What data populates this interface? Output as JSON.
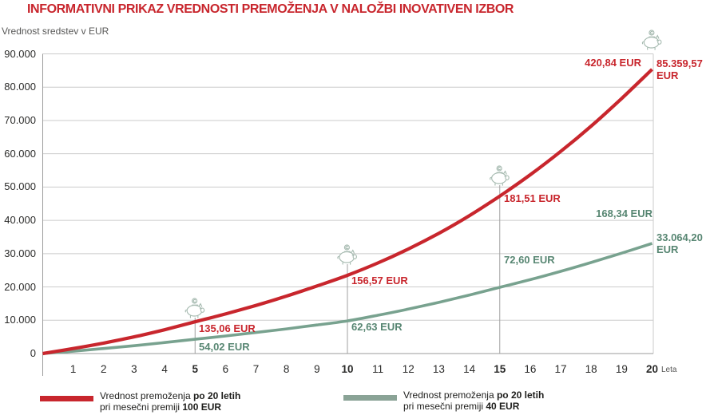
{
  "title": "INFORMATIVNI PRIKAZ VREDNOSTI PREMOŽENJA V NALOŽBI INOVATIVEN IZBOR",
  "y_axis_label": "Vrednost sredstev v EUR",
  "x_axis_suffix": "Leta",
  "colors": {
    "red": "#c8262d",
    "green_curve": "#78a28f",
    "green_text": "#578672",
    "green_swatch": "#8aa396",
    "grid": "#cbcbcb",
    "axis": "#9b9b9b",
    "marker": "#a0a0a0",
    "piggy": "#a7bbb1",
    "tick_text": "#2b2b2a"
  },
  "chart_data": {
    "type": "line",
    "x": [
      0,
      1,
      2,
      3,
      4,
      5,
      6,
      7,
      8,
      9,
      10,
      11,
      12,
      13,
      14,
      15,
      16,
      17,
      18,
      19,
      20
    ],
    "x_tick_labels": [
      "1",
      "2",
      "3",
      "4",
      "5",
      "6",
      "7",
      "8",
      "9",
      "10",
      "11",
      "12",
      "13",
      "14",
      "15",
      "16",
      "17",
      "18",
      "19",
      "20"
    ],
    "bold_x_ticks": [
      "5",
      "10",
      "15",
      "20"
    ],
    "y_tick_labels": [
      "0",
      "10.000",
      "20.000",
      "30.000",
      "40.000",
      "50.000",
      "60.000",
      "70.000",
      "80.000",
      "90.000"
    ],
    "ylim": [
      0,
      90000
    ],
    "series": [
      {
        "name": "premium_100_eur",
        "color_key": "red",
        "values": [
          0,
          1500,
          3150,
          5000,
          7150,
          9550,
          11900,
          14450,
          17250,
          20280,
          23500,
          27200,
          31400,
          36100,
          41400,
          47300,
          53700,
          60700,
          68300,
          76600,
          85359.57
        ]
      },
      {
        "name": "premium_40_eur",
        "color_key": "green",
        "values": [
          0,
          700,
          1500,
          2350,
          3300,
          4300,
          5280,
          6320,
          7410,
          8570,
          9800,
          11500,
          13350,
          15370,
          17570,
          19900,
          22200,
          24680,
          27340,
          30150,
          33064.2
        ]
      }
    ],
    "milestones": [
      {
        "year": 5,
        "red_label": "135,06 EUR",
        "green_label": "54,02 EUR"
      },
      {
        "year": 10,
        "red_label": "156,57 EUR",
        "green_label": "62,63 EUR"
      },
      {
        "year": 15,
        "red_label": "181,51 EUR",
        "green_label": "72,60 EUR"
      },
      {
        "year": 20,
        "red_label": "420,84 EUR",
        "green_label": "168,34 EUR",
        "red_total": "85.359,57 EUR",
        "green_total": "33.064,20 EUR"
      }
    ]
  },
  "legend": [
    {
      "line1_normal": "Vrednost premoženja ",
      "line1_bold": "po 20 letih",
      "line2_normal": "pri mesečni premiji ",
      "line2_bold": "100 EUR"
    },
    {
      "line1_normal": "Vrednost premoženja ",
      "line1_bold": "po 20 letih",
      "line2_normal": "pri mesečni premiji ",
      "line2_bold": "40 EUR"
    }
  ]
}
